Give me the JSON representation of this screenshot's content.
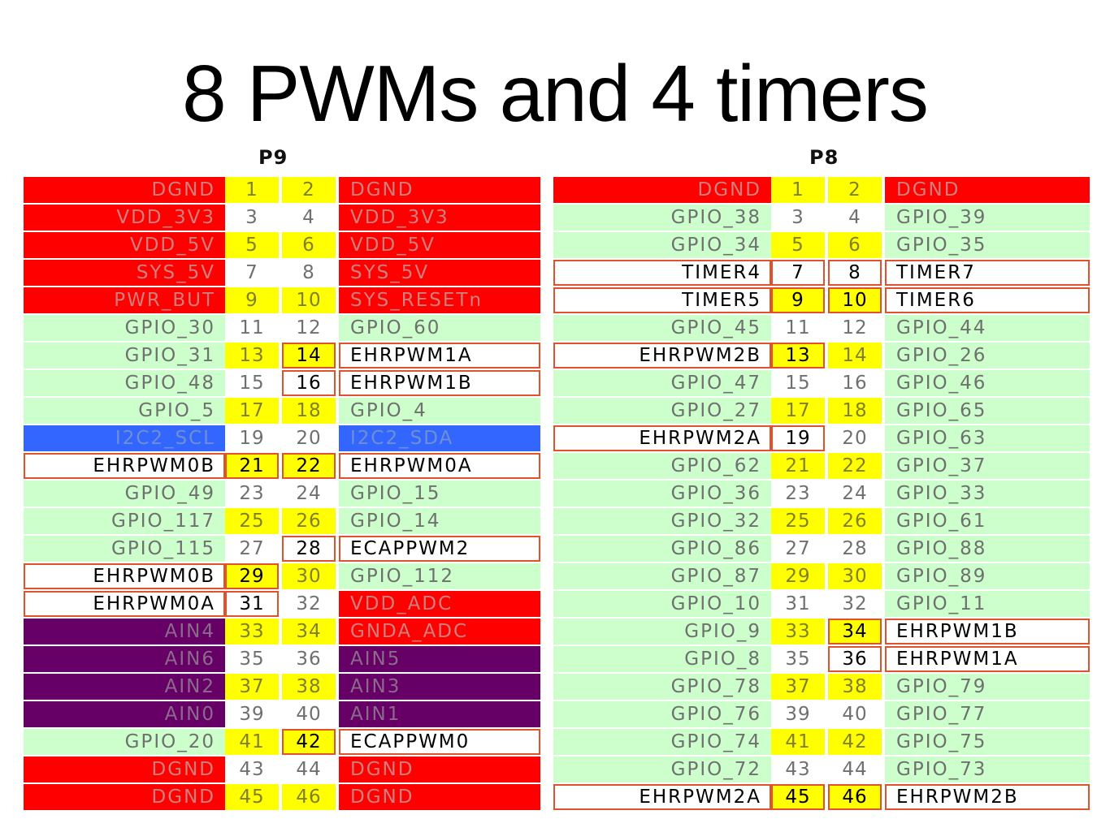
{
  "title": "8 PWMs and 4 timers",
  "headers": {
    "p9": "P9",
    "p8": "P8"
  },
  "colors": {
    "red": "#ff0000",
    "green": "#ccffcc",
    "blue": "#3366ff",
    "purple": "#660066",
    "yellow": "#ffff00",
    "white": "#ffffff",
    "highlight_border": "#e0522b"
  },
  "p9": [
    {
      "left": "DGND",
      "lp": "1",
      "rp": "2",
      "right": "DGND",
      "lbg": "red",
      "rbg": "red",
      "hl_l": false,
      "hl_lp": false,
      "hl_rp": false,
      "hl_r": false
    },
    {
      "left": "VDD_3V3",
      "lp": "3",
      "rp": "4",
      "right": "VDD_3V3",
      "lbg": "red",
      "rbg": "red",
      "hl_l": false,
      "hl_lp": false,
      "hl_rp": false,
      "hl_r": false
    },
    {
      "left": "VDD_5V",
      "lp": "5",
      "rp": "6",
      "right": "VDD_5V",
      "lbg": "red",
      "rbg": "red",
      "hl_l": false,
      "hl_lp": false,
      "hl_rp": false,
      "hl_r": false
    },
    {
      "left": "SYS_5V",
      "lp": "7",
      "rp": "8",
      "right": "SYS_5V",
      "lbg": "red",
      "rbg": "red",
      "hl_l": false,
      "hl_lp": false,
      "hl_rp": false,
      "hl_r": false
    },
    {
      "left": "PWR_BUT",
      "lp": "9",
      "rp": "10",
      "right": "SYS_RESETn",
      "lbg": "red",
      "rbg": "red",
      "hl_l": false,
      "hl_lp": false,
      "hl_rp": false,
      "hl_r": false
    },
    {
      "left": "GPIO_30",
      "lp": "11",
      "rp": "12",
      "right": "GPIO_60",
      "lbg": "green",
      "rbg": "green",
      "hl_l": false,
      "hl_lp": false,
      "hl_rp": false,
      "hl_r": false
    },
    {
      "left": "GPIO_31",
      "lp": "13",
      "rp": "14",
      "right": "EHRPWM1A",
      "lbg": "green",
      "rbg": "white",
      "hl_l": false,
      "hl_lp": false,
      "hl_rp": true,
      "hl_r": true
    },
    {
      "left": "GPIO_48",
      "lp": "15",
      "rp": "16",
      "right": "EHRPWM1B",
      "lbg": "green",
      "rbg": "white",
      "hl_l": false,
      "hl_lp": false,
      "hl_rp": true,
      "hl_r": true
    },
    {
      "left": "GPIO_5",
      "lp": "17",
      "rp": "18",
      "right": "GPIO_4",
      "lbg": "green",
      "rbg": "green",
      "hl_l": false,
      "hl_lp": false,
      "hl_rp": false,
      "hl_r": false
    },
    {
      "left": "I2C2_SCL",
      "lp": "19",
      "rp": "20",
      "right": "I2C2_SDA",
      "lbg": "blue",
      "rbg": "blue",
      "hl_l": false,
      "hl_lp": false,
      "hl_rp": false,
      "hl_r": false
    },
    {
      "left": "EHRPWM0B",
      "lp": "21",
      "rp": "22",
      "right": "EHRPWM0A",
      "lbg": "white",
      "rbg": "white",
      "hl_l": true,
      "hl_lp": true,
      "hl_rp": true,
      "hl_r": true
    },
    {
      "left": "GPIO_49",
      "lp": "23",
      "rp": "24",
      "right": "GPIO_15",
      "lbg": "green",
      "rbg": "green",
      "hl_l": false,
      "hl_lp": false,
      "hl_rp": false,
      "hl_r": false
    },
    {
      "left": "GPIO_117",
      "lp": "25",
      "rp": "26",
      "right": "GPIO_14",
      "lbg": "green",
      "rbg": "green",
      "hl_l": false,
      "hl_lp": false,
      "hl_rp": false,
      "hl_r": false
    },
    {
      "left": "GPIO_115",
      "lp": "27",
      "rp": "28",
      "right": "ECAPPWM2",
      "lbg": "green",
      "rbg": "white",
      "hl_l": false,
      "hl_lp": false,
      "hl_rp": true,
      "hl_r": true
    },
    {
      "left": "EHRPWM0B",
      "lp": "29",
      "rp": "30",
      "right": "GPIO_112",
      "lbg": "white",
      "rbg": "green",
      "hl_l": true,
      "hl_lp": true,
      "hl_rp": false,
      "hl_r": false
    },
    {
      "left": "EHRPWM0A",
      "lp": "31",
      "rp": "32",
      "right": "VDD_ADC",
      "lbg": "white",
      "rbg": "red",
      "hl_l": true,
      "hl_lp": true,
      "hl_rp": false,
      "hl_r": false
    },
    {
      "left": "AIN4",
      "lp": "33",
      "rp": "34",
      "right": "GNDA_ADC",
      "lbg": "purple",
      "rbg": "red",
      "hl_l": false,
      "hl_lp": false,
      "hl_rp": false,
      "hl_r": false
    },
    {
      "left": "AIN6",
      "lp": "35",
      "rp": "36",
      "right": "AIN5",
      "lbg": "purple",
      "rbg": "purple",
      "hl_l": false,
      "hl_lp": false,
      "hl_rp": false,
      "hl_r": false
    },
    {
      "left": "AIN2",
      "lp": "37",
      "rp": "38",
      "right": "AIN3",
      "lbg": "purple",
      "rbg": "purple",
      "hl_l": false,
      "hl_lp": false,
      "hl_rp": false,
      "hl_r": false
    },
    {
      "left": "AIN0",
      "lp": "39",
      "rp": "40",
      "right": "AIN1",
      "lbg": "purple",
      "rbg": "purple",
      "hl_l": false,
      "hl_lp": false,
      "hl_rp": false,
      "hl_r": false
    },
    {
      "left": "GPIO_20",
      "lp": "41",
      "rp": "42",
      "right": "ECAPPWM0",
      "lbg": "green",
      "rbg": "white",
      "hl_l": false,
      "hl_lp": false,
      "hl_rp": true,
      "hl_r": true
    },
    {
      "left": "DGND",
      "lp": "43",
      "rp": "44",
      "right": "DGND",
      "lbg": "red",
      "rbg": "red",
      "hl_l": false,
      "hl_lp": false,
      "hl_rp": false,
      "hl_r": false
    },
    {
      "left": "DGND",
      "lp": "45",
      "rp": "46",
      "right": "DGND",
      "lbg": "red",
      "rbg": "red",
      "hl_l": false,
      "hl_lp": false,
      "hl_rp": false,
      "hl_r": false
    }
  ],
  "p8": [
    {
      "left": "DGND",
      "lp": "1",
      "rp": "2",
      "right": "DGND",
      "lbg": "red",
      "rbg": "red",
      "hl_l": false,
      "hl_lp": false,
      "hl_rp": false,
      "hl_r": false
    },
    {
      "left": "GPIO_38",
      "lp": "3",
      "rp": "4",
      "right": "GPIO_39",
      "lbg": "green",
      "rbg": "green",
      "hl_l": false,
      "hl_lp": false,
      "hl_rp": false,
      "hl_r": false
    },
    {
      "left": "GPIO_34",
      "lp": "5",
      "rp": "6",
      "right": "GPIO_35",
      "lbg": "green",
      "rbg": "green",
      "hl_l": false,
      "hl_lp": false,
      "hl_rp": false,
      "hl_r": false
    },
    {
      "left": "TIMER4",
      "lp": "7",
      "rp": "8",
      "right": "TIMER7",
      "lbg": "white",
      "rbg": "white",
      "hl_l": true,
      "hl_lp": true,
      "hl_rp": true,
      "hl_r": true
    },
    {
      "left": "TIMER5",
      "lp": "9",
      "rp": "10",
      "right": "TIMER6",
      "lbg": "white",
      "rbg": "white",
      "hl_l": true,
      "hl_lp": true,
      "hl_rp": true,
      "hl_r": true
    },
    {
      "left": "GPIO_45",
      "lp": "11",
      "rp": "12",
      "right": "GPIO_44",
      "lbg": "green",
      "rbg": "green",
      "hl_l": false,
      "hl_lp": false,
      "hl_rp": false,
      "hl_r": false
    },
    {
      "left": "EHRPWM2B",
      "lp": "13",
      "rp": "14",
      "right": "GPIO_26",
      "lbg": "white",
      "rbg": "green",
      "hl_l": true,
      "hl_lp": true,
      "hl_rp": false,
      "hl_r": false
    },
    {
      "left": "GPIO_47",
      "lp": "15",
      "rp": "16",
      "right": "GPIO_46",
      "lbg": "green",
      "rbg": "green",
      "hl_l": false,
      "hl_lp": false,
      "hl_rp": false,
      "hl_r": false
    },
    {
      "left": "GPIO_27",
      "lp": "17",
      "rp": "18",
      "right": "GPIO_65",
      "lbg": "green",
      "rbg": "green",
      "hl_l": false,
      "hl_lp": false,
      "hl_rp": false,
      "hl_r": false
    },
    {
      "left": "EHRPWM2A",
      "lp": "19",
      "rp": "20",
      "right": "GPIO_63",
      "lbg": "white",
      "rbg": "green",
      "hl_l": true,
      "hl_lp": true,
      "hl_rp": false,
      "hl_r": false
    },
    {
      "left": "GPIO_62",
      "lp": "21",
      "rp": "22",
      "right": "GPIO_37",
      "lbg": "green",
      "rbg": "green",
      "hl_l": false,
      "hl_lp": false,
      "hl_rp": false,
      "hl_r": false
    },
    {
      "left": "GPIO_36",
      "lp": "23",
      "rp": "24",
      "right": "GPIO_33",
      "lbg": "green",
      "rbg": "green",
      "hl_l": false,
      "hl_lp": false,
      "hl_rp": false,
      "hl_r": false
    },
    {
      "left": "GPIO_32",
      "lp": "25",
      "rp": "26",
      "right": "GPIO_61",
      "lbg": "green",
      "rbg": "green",
      "hl_l": false,
      "hl_lp": false,
      "hl_rp": false,
      "hl_r": false
    },
    {
      "left": "GPIO_86",
      "lp": "27",
      "rp": "28",
      "right": "GPIO_88",
      "lbg": "green",
      "rbg": "green",
      "hl_l": false,
      "hl_lp": false,
      "hl_rp": false,
      "hl_r": false
    },
    {
      "left": "GPIO_87",
      "lp": "29",
      "rp": "30",
      "right": "GPIO_89",
      "lbg": "green",
      "rbg": "green",
      "hl_l": false,
      "hl_lp": false,
      "hl_rp": false,
      "hl_r": false
    },
    {
      "left": "GPIO_10",
      "lp": "31",
      "rp": "32",
      "right": "GPIO_11",
      "lbg": "green",
      "rbg": "green",
      "hl_l": false,
      "hl_lp": false,
      "hl_rp": false,
      "hl_r": false
    },
    {
      "left": "GPIO_9",
      "lp": "33",
      "rp": "34",
      "right": "EHRPWM1B",
      "lbg": "green",
      "rbg": "white",
      "hl_l": false,
      "hl_lp": false,
      "hl_rp": true,
      "hl_r": true
    },
    {
      "left": "GPIO_8",
      "lp": "35",
      "rp": "36",
      "right": "EHRPWM1A",
      "lbg": "green",
      "rbg": "white",
      "hl_l": false,
      "hl_lp": false,
      "hl_rp": true,
      "hl_r": true
    },
    {
      "left": "GPIO_78",
      "lp": "37",
      "rp": "38",
      "right": "GPIO_79",
      "lbg": "green",
      "rbg": "green",
      "hl_l": false,
      "hl_lp": false,
      "hl_rp": false,
      "hl_r": false
    },
    {
      "left": "GPIO_76",
      "lp": "39",
      "rp": "40",
      "right": "GPIO_77",
      "lbg": "green",
      "rbg": "green",
      "hl_l": false,
      "hl_lp": false,
      "hl_rp": false,
      "hl_r": false
    },
    {
      "left": "GPIO_74",
      "lp": "41",
      "rp": "42",
      "right": "GPIO_75",
      "lbg": "green",
      "rbg": "green",
      "hl_l": false,
      "hl_lp": false,
      "hl_rp": false,
      "hl_r": false
    },
    {
      "left": "GPIO_72",
      "lp": "43",
      "rp": "44",
      "right": "GPIO_73",
      "lbg": "green",
      "rbg": "green",
      "hl_l": false,
      "hl_lp": false,
      "hl_rp": false,
      "hl_r": false
    },
    {
      "left": "EHRPWM2A",
      "lp": "45",
      "rp": "46",
      "right": "EHRPWM2B",
      "lbg": "white",
      "rbg": "white",
      "hl_l": true,
      "hl_lp": true,
      "hl_rp": true,
      "hl_r": true
    }
  ]
}
